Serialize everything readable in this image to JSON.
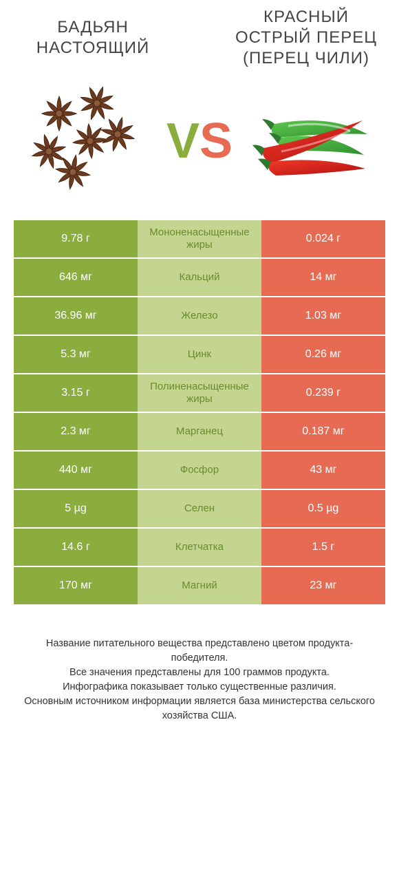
{
  "title_left": "БАДЬЯН НАСТОЯЩИЙ",
  "title_right": "КРАСНЫЙ ОСТРЫЙ ПЕРЕЦ (ПЕРЕЦ ЧИЛИ)",
  "vs_v": "V",
  "vs_s": "S",
  "colors": {
    "left_main": "#8aad3e",
    "left_light": "#c4d58f",
    "left_text": "#6a8a2d",
    "right_main": "#e76b52",
    "right_light": "#f2b2a4",
    "right_text": "#c84d36",
    "anise": "#6b3a1f",
    "chili_red": "#d11f1f",
    "chili_green": "#3fa63f",
    "chili_stem": "#2f7a2f"
  },
  "rows": [
    {
      "left": "9.78 г",
      "mid": "Мононенасыщенные жиры",
      "right": "0.024 г",
      "winner": "left"
    },
    {
      "left": "646 мг",
      "mid": "Кальций",
      "right": "14 мг",
      "winner": "left"
    },
    {
      "left": "36.96 мг",
      "mid": "Железо",
      "right": "1.03 мг",
      "winner": "left"
    },
    {
      "left": "5.3 мг",
      "mid": "Цинк",
      "right": "0.26 мг",
      "winner": "left"
    },
    {
      "left": "3.15 г",
      "mid": "Полиненасыщенные жиры",
      "right": "0.239 г",
      "winner": "left"
    },
    {
      "left": "2.3 мг",
      "mid": "Марганец",
      "right": "0.187 мг",
      "winner": "left"
    },
    {
      "left": "440 мг",
      "mid": "Фосфор",
      "right": "43 мг",
      "winner": "left"
    },
    {
      "left": "5 µg",
      "mid": "Селен",
      "right": "0.5 µg",
      "winner": "left"
    },
    {
      "left": "14.6 г",
      "mid": "Клетчатка",
      "right": "1.5 г",
      "winner": "left"
    },
    {
      "left": "170 мг",
      "mid": "Магний",
      "right": "23 мг",
      "winner": "left"
    }
  ],
  "footer": [
    "Название питательного вещества представлено цветом продукта-победителя.",
    "Все значения представлены для 100 граммов продукта.",
    "Инфографика показывает только существенные различия.",
    "Основным источником информации является база министерства сельского хозяйства США."
  ]
}
